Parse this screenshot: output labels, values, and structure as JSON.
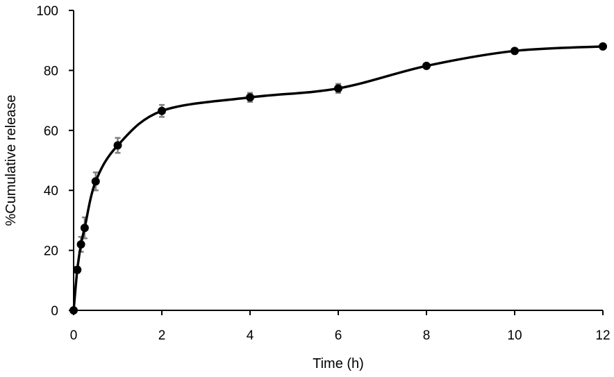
{
  "chart_data": {
    "type": "line",
    "title": "",
    "xlabel": "Time (h)",
    "ylabel": "%Cumulative release",
    "xlim": [
      0,
      12
    ],
    "ylim": [
      0,
      100
    ],
    "xticks": [
      0,
      2,
      4,
      6,
      8,
      10,
      12
    ],
    "yticks": [
      0,
      20,
      40,
      60,
      80,
      100
    ],
    "grid": false,
    "legend": "none",
    "series": [
      {
        "x": [
          0,
          0.083,
          0.167,
          0.25,
          0.5,
          1,
          2,
          4,
          6,
          8,
          10,
          12
        ],
        "y": [
          0,
          13.5,
          22,
          27.5,
          43,
          55,
          66.5,
          71,
          74,
          81.5,
          86.5,
          88
        ],
        "error": [
          0,
          1,
          2.5,
          3.5,
          3,
          2.5,
          2,
          1.5,
          1.5,
          0.5,
          0.5,
          0.5
        ],
        "color": "#000000",
        "error_color": "#808080"
      }
    ]
  }
}
